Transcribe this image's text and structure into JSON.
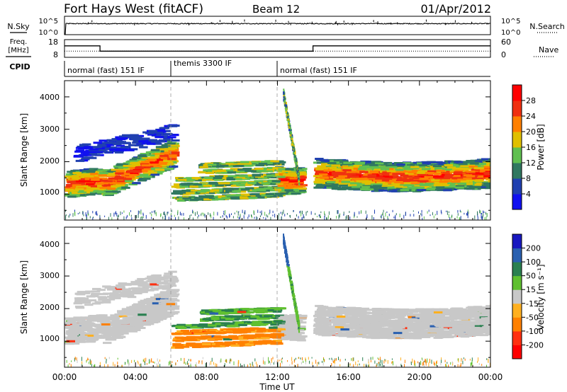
{
  "chart_data": [
    {
      "type": "line",
      "title": "Fort Hays West (fitACF)",
      "beam": "Beam 12",
      "date": "01/Apr/2012",
      "panel": "noise",
      "left_axis": {
        "label": "N.Sky",
        "scale": "log",
        "ticks": [
          "10^5",
          "10^0"
        ]
      },
      "right_axis": {
        "label": "N.Search",
        "scale": "log",
        "ticks": [
          "10^5",
          "10^0"
        ]
      },
      "series": [
        {
          "name": "N.Sky",
          "style": "solid",
          "note": "roughly constant near 10^3 all day",
          "x": [
            "00:00",
            "06:00",
            "12:00",
            "18:00",
            "24:00"
          ],
          "y": [
            1000,
            1000,
            1000,
            1000,
            1000
          ]
        }
      ]
    },
    {
      "type": "line",
      "panel": "frequency",
      "left_axis": {
        "label": "Freq. [MHz]",
        "ticks": [
          "18",
          "8"
        ],
        "ylim": [
          8,
          18
        ]
      },
      "right_axis": {
        "label": "Nave",
        "ticks": [
          "60",
          "0"
        ],
        "ylim": [
          0,
          60
        ]
      },
      "series": [
        {
          "name": "Freq.",
          "style": "solid",
          "x": [
            "00:00",
            "02:00",
            "02:00",
            "14:00",
            "14:00",
            "24:00"
          ],
          "y": [
            14.5,
            14.5,
            11.5,
            11.5,
            14.5,
            14.5
          ]
        },
        {
          "name": "Nave",
          "style": "dotted",
          "x": [
            "00:00",
            "24:00"
          ],
          "y": [
            21,
            21
          ]
        }
      ]
    },
    {
      "type": "table",
      "panel": "cpid",
      "label": "CPID",
      "segments": [
        {
          "start": "00:00",
          "end": "06:00",
          "name": "normal (fast) 151 IF"
        },
        {
          "start": "06:00",
          "end": "12:00",
          "name": "themis 3300 IF"
        },
        {
          "start": "12:00",
          "end": "24:00",
          "name": "normal (fast) 151 IF"
        }
      ]
    },
    {
      "type": "heatmap",
      "panel": "power",
      "ylabel": "Slant Range [km]",
      "yticks": [
        "1000",
        "2000",
        "3000",
        "4000"
      ],
      "ylim": [
        200,
        4500
      ],
      "colorbar": {
        "label": "Power [dB]",
        "ticks": [
          "4",
          "8",
          "12",
          "16",
          "20",
          "24",
          "28"
        ],
        "colors": [
          "#1010f0",
          "#2040b0",
          "#307860",
          "#60c050",
          "#e0c000",
          "#ff8000",
          "#f03010",
          "#ff0000"
        ]
      },
      "features": [
        {
          "x_hours": [
            0,
            2
          ],
          "range_km": [
            1050,
            1900
          ],
          "power_db": 24,
          "note": "main band"
        },
        {
          "x_hours": [
            2,
            6
          ],
          "range_km": [
            1100,
            2500
          ],
          "power_db": 20,
          "note": "main band rising with time"
        },
        {
          "x_hours": [
            1,
            5
          ],
          "range_km": [
            2200,
            3200
          ],
          "power_db": 8,
          "note": "upper band"
        },
        {
          "x_hours": [
            6,
            12
          ],
          "range_km": [
            800,
            1900
          ],
          "power_db": 14,
          "note": "themis period echoes"
        },
        {
          "x_hours": [
            12.3,
            13.2
          ],
          "range_km": [
            1100,
            4100
          ],
          "power_db": 12,
          "note": "steep spike"
        },
        {
          "x_hours": [
            14,
            24
          ],
          "range_km": [
            1200,
            2400
          ],
          "power_db": 20,
          "note": "band"
        }
      ]
    },
    {
      "type": "heatmap",
      "panel": "velocity",
      "ylabel": "Slant Range [km]",
      "yticks": [
        "1000",
        "2000",
        "3000",
        "4000"
      ],
      "ylim": [
        200,
        4500
      ],
      "xlabel": "Time UT",
      "xticks": [
        "00:00",
        "04:00",
        "08:00",
        "12:00",
        "16:00",
        "20:00",
        "00:00"
      ],
      "colorbar": {
        "label": "Velocity [m s⁻¹]",
        "ticks": [
          "200",
          "100",
          "50",
          "15",
          "-15",
          "-50",
          "-100",
          "-200"
        ],
        "colors": [
          "#1818c0",
          "#2a60b0",
          "#2a8050",
          "#60c030",
          "#c8c8c8",
          "#ffb020",
          "#ff8000",
          "#ff3010",
          "#ff0000"
        ]
      },
      "features": [
        {
          "x_hours": [
            0,
            6
          ],
          "range_km": [
            1000,
            2600
          ],
          "velocity_ms": 0,
          "note": "ground scatter"
        },
        {
          "x_hours": [
            6,
            12
          ],
          "range_km": [
            700,
            1400
          ],
          "velocity_ms": -60,
          "note": "echoes moving away"
        },
        {
          "x_hours": [
            8,
            12
          ],
          "range_km": [
            1100,
            2300
          ],
          "velocity_ms": 40,
          "note": "echoes moving toward"
        },
        {
          "x_hours": [
            12.3,
            13.2
          ],
          "range_km": [
            1300,
            4100
          ],
          "velocity_ms": 150,
          "note": "spike"
        },
        {
          "x_hours": [
            14,
            24
          ],
          "range_km": [
            1200,
            2400
          ],
          "velocity_ms": 0,
          "note": "ground scatter"
        }
      ]
    }
  ]
}
